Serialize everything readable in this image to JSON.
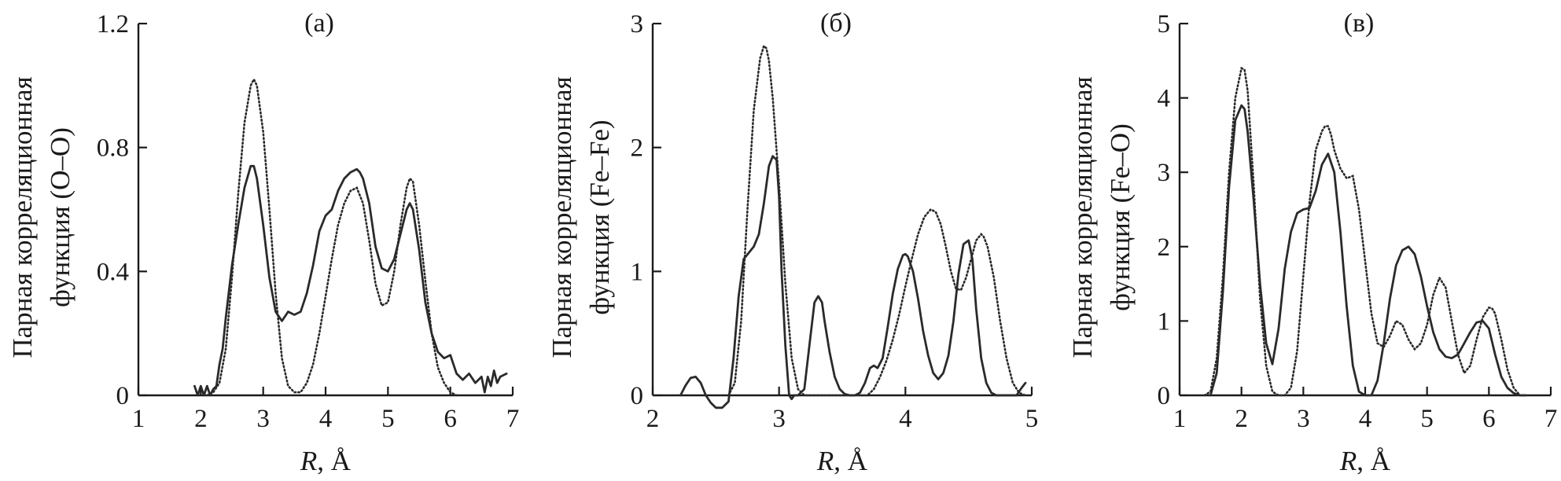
{
  "chart_data": [
    {
      "type": "line",
      "title": "(а)",
      "xlabel_var": "R",
      "xlabel_unit": ", Å",
      "ylabel_line1": "Парная корреляционная",
      "ylabel_line2": "функция (O–O)",
      "xlim": [
        1,
        7
      ],
      "ylim": [
        0,
        1.2
      ],
      "xticks": [
        "1",
        "2",
        "3",
        "4",
        "5",
        "6",
        "7"
      ],
      "yticks": [
        "0",
        "0.4",
        "0.8",
        "1.2"
      ],
      "xtick_values": [
        1,
        2,
        3,
        4,
        5,
        6,
        7
      ],
      "ytick_values": [
        0,
        0.4,
        0.8,
        1.2
      ],
      "series": [
        {
          "style": "solid",
          "x": [
            1.9,
            1.95,
            2.0,
            2.05,
            2.1,
            2.15,
            2.2,
            2.25,
            2.3,
            2.35,
            2.4,
            2.5,
            2.6,
            2.7,
            2.8,
            2.85,
            2.9,
            3.0,
            3.1,
            3.2,
            3.3,
            3.4,
            3.5,
            3.6,
            3.7,
            3.8,
            3.9,
            4.0,
            4.1,
            4.2,
            4.3,
            4.4,
            4.5,
            4.55,
            4.6,
            4.7,
            4.8,
            4.9,
            5.0,
            5.1,
            5.2,
            5.3,
            5.35,
            5.4,
            5.5,
            5.6,
            5.7,
            5.8,
            5.9,
            6.0,
            6.05,
            6.1,
            6.2,
            6.3,
            6.4,
            6.5,
            6.55,
            6.6,
            6.65,
            6.7,
            6.75,
            6.8,
            6.9
          ],
          "y": [
            0.03,
            0.0,
            0.03,
            0.0,
            0.03,
            0.0,
            0.02,
            0.03,
            0.1,
            0.15,
            0.25,
            0.42,
            0.55,
            0.67,
            0.74,
            0.74,
            0.7,
            0.55,
            0.38,
            0.27,
            0.24,
            0.27,
            0.26,
            0.27,
            0.33,
            0.42,
            0.53,
            0.58,
            0.6,
            0.66,
            0.7,
            0.72,
            0.73,
            0.72,
            0.7,
            0.62,
            0.48,
            0.41,
            0.4,
            0.44,
            0.52,
            0.6,
            0.62,
            0.6,
            0.47,
            0.3,
            0.2,
            0.14,
            0.12,
            0.13,
            0.1,
            0.07,
            0.05,
            0.07,
            0.04,
            0.06,
            0.01,
            0.06,
            0.03,
            0.08,
            0.04,
            0.06,
            0.07
          ]
        },
        {
          "style": "dotted",
          "x": [
            2.1,
            2.2,
            2.3,
            2.4,
            2.5,
            2.6,
            2.7,
            2.8,
            2.85,
            2.9,
            3.0,
            3.1,
            3.2,
            3.3,
            3.4,
            3.5,
            3.6,
            3.7,
            3.8,
            3.9,
            4.0,
            4.1,
            4.2,
            4.3,
            4.4,
            4.5,
            4.6,
            4.7,
            4.8,
            4.9,
            5.0,
            5.1,
            5.2,
            5.3,
            5.35,
            5.4,
            5.5,
            5.6,
            5.7,
            5.8,
            5.9,
            6.0,
            6.1
          ],
          "y": [
            0.0,
            0.01,
            0.04,
            0.15,
            0.38,
            0.65,
            0.88,
            1.0,
            1.02,
            1.0,
            0.85,
            0.6,
            0.33,
            0.12,
            0.03,
            0.01,
            0.01,
            0.04,
            0.1,
            0.2,
            0.32,
            0.44,
            0.55,
            0.62,
            0.66,
            0.67,
            0.62,
            0.5,
            0.36,
            0.29,
            0.3,
            0.4,
            0.55,
            0.67,
            0.7,
            0.69,
            0.55,
            0.37,
            0.2,
            0.09,
            0.04,
            0.01,
            0.0
          ]
        }
      ]
    },
    {
      "type": "line",
      "title": "(б)",
      "xlabel_var": "R",
      "xlabel_unit": ", Å",
      "ylabel_line1": "Парная корреляционная",
      "ylabel_line2": "функция (Fe–Fe)",
      "xlim": [
        2,
        5
      ],
      "ylim": [
        0,
        3
      ],
      "xticks": [
        "2",
        "3",
        "4",
        "5"
      ],
      "yticks": [
        "0",
        "1",
        "2",
        "3"
      ],
      "xtick_values": [
        2,
        3,
        4,
        5
      ],
      "ytick_values": [
        0,
        1,
        2,
        3
      ],
      "series": [
        {
          "style": "solid",
          "x": [
            2.22,
            2.26,
            2.3,
            2.34,
            2.38,
            2.42,
            2.46,
            2.5,
            2.55,
            2.6,
            2.64,
            2.68,
            2.72,
            2.76,
            2.8,
            2.84,
            2.88,
            2.92,
            2.95,
            2.98,
            3.0,
            3.02,
            3.05,
            3.08,
            3.1,
            3.12,
            3.15,
            3.2,
            3.24,
            3.28,
            3.31,
            3.34,
            3.36,
            3.4,
            3.44,
            3.48,
            3.52,
            3.56,
            3.6,
            3.64,
            3.68,
            3.72,
            3.75,
            3.78,
            3.82,
            3.86,
            3.9,
            3.94,
            3.98,
            4.0,
            4.02,
            4.06,
            4.1,
            4.14,
            4.18,
            4.22,
            4.26,
            4.3,
            4.34,
            4.38,
            4.42,
            4.46,
            4.5,
            4.53,
            4.56,
            4.6,
            4.64,
            4.68,
            4.72,
            4.76,
            4.8,
            4.84,
            4.88,
            4.92,
            4.95
          ],
          "y": [
            0.0,
            0.08,
            0.14,
            0.15,
            0.1,
            0.0,
            -0.06,
            -0.1,
            -0.1,
            -0.05,
            0.3,
            0.8,
            1.1,
            1.15,
            1.2,
            1.3,
            1.55,
            1.85,
            1.93,
            1.9,
            1.6,
            1.0,
            0.4,
            0.0,
            -0.03,
            0.0,
            0.0,
            0.05,
            0.4,
            0.75,
            0.8,
            0.75,
            0.6,
            0.35,
            0.15,
            0.05,
            0.01,
            0.0,
            0.0,
            0.02,
            0.1,
            0.22,
            0.24,
            0.22,
            0.3,
            0.55,
            0.82,
            1.02,
            1.13,
            1.14,
            1.12,
            1.0,
            0.78,
            0.52,
            0.32,
            0.18,
            0.13,
            0.18,
            0.32,
            0.6,
            0.98,
            1.22,
            1.25,
            1.1,
            0.7,
            0.3,
            0.1,
            0.02,
            0.0,
            0.0,
            0.0,
            0.0,
            0.0,
            0.06,
            0.1
          ]
        },
        {
          "style": "dotted",
          "x": [
            2.6,
            2.65,
            2.7,
            2.75,
            2.8,
            2.85,
            2.88,
            2.9,
            2.92,
            2.95,
            3.0,
            3.05,
            3.1,
            3.15,
            3.2,
            3.3,
            3.5,
            3.7,
            3.75,
            3.8,
            3.85,
            3.9,
            3.95,
            4.0,
            4.05,
            4.1,
            4.15,
            4.2,
            4.24,
            4.28,
            4.32,
            4.36,
            4.4,
            4.44,
            4.48,
            4.52,
            4.56,
            4.6,
            4.62,
            4.65,
            4.7,
            4.75,
            4.8,
            4.85,
            4.9,
            4.95
          ],
          "y": [
            0.0,
            0.1,
            0.6,
            1.5,
            2.3,
            2.72,
            2.82,
            2.8,
            2.7,
            2.4,
            1.7,
            0.9,
            0.3,
            0.05,
            0.0,
            0.0,
            0.0,
            0.0,
            0.05,
            0.15,
            0.28,
            0.45,
            0.65,
            0.88,
            1.1,
            1.3,
            1.44,
            1.5,
            1.48,
            1.38,
            1.2,
            1.0,
            0.86,
            0.85,
            0.95,
            1.1,
            1.25,
            1.3,
            1.28,
            1.2,
            0.95,
            0.6,
            0.3,
            0.1,
            0.02,
            0.0
          ]
        }
      ]
    },
    {
      "type": "line",
      "title": "(в)",
      "xlabel_var": "R",
      "xlabel_unit": ", Å",
      "ylabel_line1": "Парная корреляционная",
      "ylabel_line2": "функция (Fe–O)",
      "xlim": [
        1,
        7
      ],
      "ylim": [
        0,
        5
      ],
      "xticks": [
        "1",
        "2",
        "3",
        "4",
        "5",
        "6",
        "7"
      ],
      "yticks": [
        "0",
        "1",
        "2",
        "3",
        "4",
        "5"
      ],
      "xtick_values": [
        1,
        2,
        3,
        4,
        5,
        6,
        7
      ],
      "ytick_values": [
        0,
        1,
        2,
        3,
        4,
        5
      ],
      "series": [
        {
          "style": "solid",
          "x": [
            1.5,
            1.6,
            1.7,
            1.8,
            1.9,
            2.0,
            2.05,
            2.1,
            2.2,
            2.3,
            2.4,
            2.5,
            2.6,
            2.7,
            2.8,
            2.9,
            3.0,
            3.1,
            3.2,
            3.3,
            3.4,
            3.5,
            3.6,
            3.7,
            3.8,
            3.9,
            4.0,
            4.1,
            4.2,
            4.3,
            4.4,
            4.5,
            4.6,
            4.7,
            4.8,
            4.9,
            5.0,
            5.1,
            5.2,
            5.3,
            5.4,
            5.5,
            5.6,
            5.7,
            5.8,
            5.9,
            6.0,
            6.1,
            6.2,
            6.3,
            6.4,
            6.5,
            6.6
          ],
          "y": [
            0.0,
            0.3,
            1.4,
            2.8,
            3.7,
            3.9,
            3.85,
            3.55,
            2.6,
            1.5,
            0.7,
            0.42,
            0.9,
            1.7,
            2.2,
            2.45,
            2.5,
            2.52,
            2.75,
            3.1,
            3.25,
            3.0,
            2.2,
            1.2,
            0.4,
            0.05,
            0.0,
            0.0,
            0.2,
            0.7,
            1.3,
            1.75,
            1.95,
            2.0,
            1.9,
            1.6,
            1.2,
            0.85,
            0.62,
            0.52,
            0.5,
            0.55,
            0.7,
            0.85,
            0.98,
            1.0,
            0.9,
            0.55,
            0.25,
            0.1,
            0.03,
            0.0,
            0.0
          ]
        },
        {
          "style": "dotted",
          "x": [
            1.4,
            1.5,
            1.6,
            1.7,
            1.8,
            1.9,
            2.0,
            2.05,
            2.1,
            2.2,
            2.3,
            2.4,
            2.5,
            2.6,
            2.7,
            2.8,
            2.9,
            3.0,
            3.1,
            3.2,
            3.3,
            3.35,
            3.4,
            3.45,
            3.5,
            3.6,
            3.7,
            3.8,
            3.9,
            4.0,
            4.1,
            4.2,
            4.3,
            4.4,
            4.5,
            4.6,
            4.7,
            4.8,
            4.9,
            5.0,
            5.1,
            5.2,
            5.3,
            5.4,
            5.5,
            5.6,
            5.7,
            5.8,
            5.9,
            6.0,
            6.05,
            6.1,
            6.2,
            6.3,
            6.4,
            6.5
          ],
          "y": [
            0.0,
            0.05,
            0.5,
            1.6,
            3.0,
            4.0,
            4.4,
            4.38,
            4.1,
            2.8,
            1.3,
            0.4,
            0.05,
            0.0,
            0.0,
            0.1,
            0.6,
            1.6,
            2.6,
            3.3,
            3.55,
            3.62,
            3.62,
            3.5,
            3.3,
            3.05,
            2.92,
            2.95,
            2.5,
            1.8,
            1.1,
            0.7,
            0.65,
            0.8,
            1.0,
            0.95,
            0.75,
            0.62,
            0.7,
            0.95,
            1.35,
            1.58,
            1.45,
            1.0,
            0.55,
            0.3,
            0.4,
            0.75,
            1.05,
            1.18,
            1.17,
            1.1,
            0.75,
            0.35,
            0.1,
            0.0
          ]
        }
      ]
    }
  ]
}
